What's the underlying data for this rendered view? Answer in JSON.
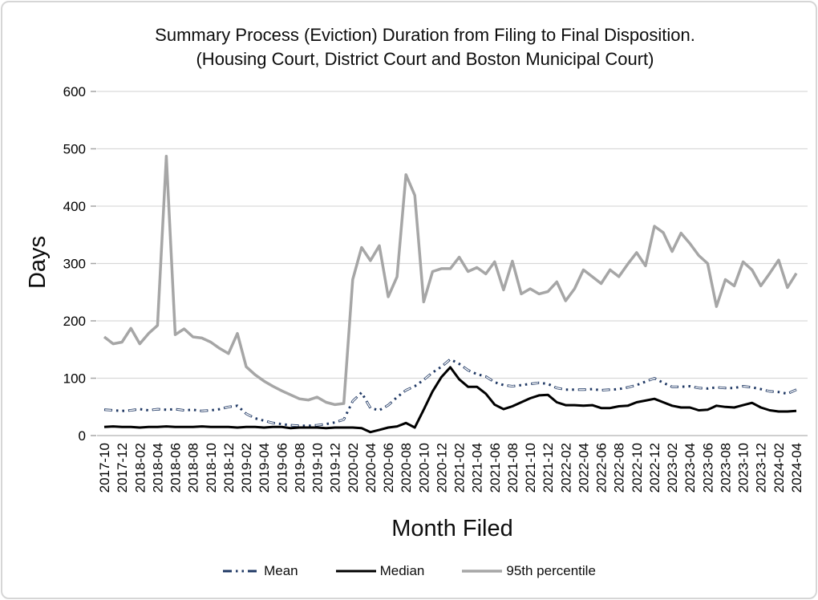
{
  "page": {
    "background": "#ffffff",
    "card_border_color": "#d6d6d6"
  },
  "chart": {
    "title_line1": "Summary Process (Eviction) Duration from Filing to Final Disposition.",
    "title_line2": "(Housing Court, District Court and Boston Municipal Court)",
    "y_axis": {
      "label": "Days",
      "min": 0,
      "max": 600,
      "tick_step": 100,
      "ticks": [
        0,
        100,
        200,
        300,
        400,
        500,
        600
      ]
    },
    "x_axis": {
      "label": "Month Filed",
      "tick_every": 2
    },
    "colors": {
      "gridline": "#d9d9d9",
      "axis": "#bfbfbf",
      "tick": "#a6a6a6",
      "text": "#000000"
    }
  },
  "chart_data": {
    "type": "line",
    "title": "Summary Process (Eviction) Duration from Filing to Final Disposition. (Housing Court, District Court and Boston Municipal Court)",
    "xlabel": "Month Filed",
    "ylabel": "Days",
    "ylim": [
      0,
      600
    ],
    "grid": true,
    "legend_position": "bottom",
    "x": [
      "2017-10",
      "2017-11",
      "2017-12",
      "2018-01",
      "2018-02",
      "2018-03",
      "2018-04",
      "2018-05",
      "2018-06",
      "2018-07",
      "2018-08",
      "2018-09",
      "2018-10",
      "2018-11",
      "2018-12",
      "2019-01",
      "2019-02",
      "2019-03",
      "2019-04",
      "2019-05",
      "2019-06",
      "2019-07",
      "2019-08",
      "2019-09",
      "2019-10",
      "2019-11",
      "2019-12",
      "2020-01",
      "2020-02",
      "2020-03",
      "2020-04",
      "2020-05",
      "2020-06",
      "2020-07",
      "2020-08",
      "2020-09",
      "2020-10",
      "2020-11",
      "2020-12",
      "2021-01",
      "2021-02",
      "2021-03",
      "2021-04",
      "2021-05",
      "2021-06",
      "2021-07",
      "2021-08",
      "2021-09",
      "2021-10",
      "2021-11",
      "2021-12",
      "2022-01",
      "2022-02",
      "2022-03",
      "2022-04",
      "2022-05",
      "2022-06",
      "2022-07",
      "2022-08",
      "2022-09",
      "2022-10",
      "2022-11",
      "2022-12",
      "2023-01",
      "2023-02",
      "2023-03",
      "2023-04",
      "2023-05",
      "2023-06",
      "2023-07",
      "2023-08",
      "2023-09",
      "2023-10",
      "2023-11",
      "2023-12",
      "2024-01",
      "2024-02",
      "2024-03",
      "2024-04"
    ],
    "series": [
      {
        "name": "Mean",
        "color": "#1f3864",
        "style": "dash-dot-dot",
        "stroke_width": 3,
        "values": [
          45,
          44,
          43,
          44,
          46,
          44,
          46,
          45,
          46,
          44,
          45,
          43,
          44,
          46,
          50,
          52,
          38,
          30,
          26,
          22,
          20,
          18,
          17,
          17,
          18,
          20,
          23,
          28,
          60,
          75,
          48,
          44,
          53,
          67,
          79,
          86,
          97,
          110,
          120,
          133,
          125,
          114,
          107,
          103,
          93,
          88,
          86,
          88,
          90,
          92,
          90,
          83,
          80,
          80,
          80,
          81,
          79,
          80,
          81,
          84,
          88,
          94,
          100,
          92,
          85,
          85,
          86,
          83,
          82,
          84,
          83,
          83,
          86,
          84,
          81,
          77,
          76,
          73,
          80
        ]
      },
      {
        "name": "Median",
        "color": "#000000",
        "style": "solid",
        "stroke_width": 3,
        "values": [
          15,
          16,
          15,
          15,
          14,
          15,
          15,
          16,
          15,
          15,
          15,
          16,
          15,
          15,
          15,
          14,
          15,
          15,
          14,
          15,
          15,
          13,
          14,
          14,
          14,
          13,
          14,
          14,
          14,
          13,
          6,
          10,
          14,
          16,
          22,
          14,
          45,
          77,
          102,
          119,
          98,
          85,
          85,
          73,
          54,
          46,
          51,
          58,
          65,
          70,
          71,
          58,
          53,
          53,
          52,
          53,
          48,
          48,
          51,
          52,
          58,
          61,
          64,
          58,
          52,
          49,
          49,
          44,
          45,
          52,
          50,
          49,
          53,
          57,
          49,
          44,
          42,
          42,
          43
        ]
      },
      {
        "name": "95th percentile",
        "color": "#a6a6a6",
        "style": "solid",
        "stroke_width": 3.5,
        "values": [
          172,
          160,
          163,
          187,
          160,
          178,
          192,
          487,
          176,
          186,
          172,
          170,
          163,
          152,
          143,
          178,
          120,
          106,
          95,
          86,
          78,
          71,
          64,
          62,
          67,
          58,
          54,
          56,
          272,
          328,
          305,
          331,
          242,
          277,
          455,
          419,
          233,
          286,
          291,
          291,
          311,
          286,
          293,
          282,
          303,
          254,
          304,
          247,
          256,
          247,
          251,
          268,
          235,
          256,
          289,
          277,
          265,
          289,
          277,
          299,
          319,
          296,
          365,
          354,
          321,
          353,
          335,
          314,
          300,
          225,
          272,
          261,
          303,
          289,
          261,
          283,
          306,
          258,
          283
        ]
      }
    ]
  }
}
